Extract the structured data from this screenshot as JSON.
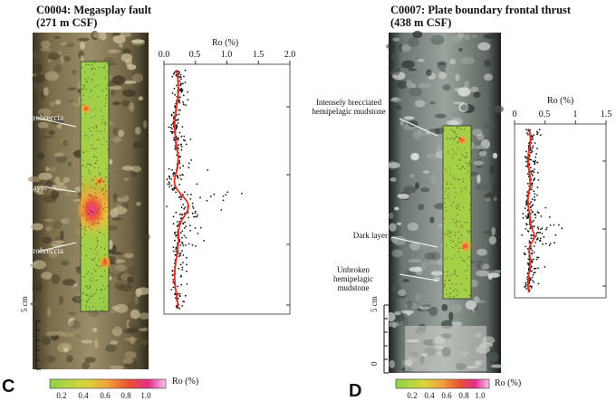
{
  "panel_c": {
    "letter": "C",
    "title_line1": "C0004: Megasplay fault",
    "title_line2": "(271 m CSF)",
    "annotations": [
      "Microbreccia",
      "Dark layer",
      "Microbreccia"
    ],
    "scale_label": "5 cm",
    "plot": {
      "axis_title": "Ro (%)",
      "ticks": [
        "0.0",
        "0.5",
        "1.0",
        "1.5",
        "2.0"
      ]
    }
  },
  "panel_d": {
    "letter": "D",
    "title_line1": "C0007: Plate boundary frontal thrust",
    "title_line2": "(438 m CSF)",
    "annotations": [
      "Intensely brecciated hemipelagic mudstone",
      "Dark layer",
      "Unbroken hemipelagic mudstone"
    ],
    "scale_label": "5 cm",
    "scale_zero": "0",
    "plot": {
      "axis_title": "Ro (%)",
      "ticks": [
        "0",
        "0.5",
        "1",
        "1.5"
      ]
    }
  },
  "colorbar": {
    "title": "Ro (%)",
    "ticks": [
      "0.2",
      "0.4",
      "0.6",
      "0.8",
      "1.0"
    ],
    "colors": [
      "#8fd14f",
      "#d8d63a",
      "#f2a23a",
      "#e8532f",
      "#e62c8d",
      "#f5c3e6"
    ]
  }
}
